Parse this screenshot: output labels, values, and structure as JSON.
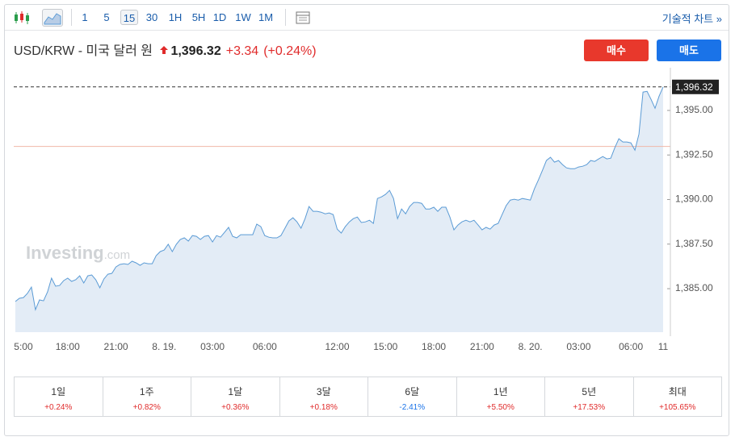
{
  "toolbar": {
    "intervals": [
      "1",
      "5",
      "15",
      "30",
      "1H",
      "5H",
      "1D",
      "1W",
      "1M"
    ],
    "active_interval": 2,
    "technical_chart": "기술적 차트 »"
  },
  "header": {
    "title": "USD/KRW - 미국 달러 원",
    "price": "1,396.32",
    "change": "+3.34",
    "change_pct": "(+0.24%)",
    "buy": "매수",
    "sell": "매도"
  },
  "chart_data": {
    "type": "line",
    "watermark": "Investing",
    "watermark_suffix": ".com",
    "color": "#5b9bd5",
    "fill": "#e3ecf6",
    "categories": [
      null,
      null,
      "5:00",
      null,
      null,
      null,
      null,
      null,
      null,
      null,
      null,
      null,
      null,
      "18:00",
      null,
      null,
      null,
      null,
      null,
      null,
      null,
      null,
      null,
      null,
      null,
      "21:00",
      null,
      null,
      null,
      null,
      null,
      null,
      null,
      null,
      null,
      null,
      null,
      "8. 19.",
      null,
      null,
      null,
      null,
      null,
      null,
      null,
      null,
      null,
      null,
      null,
      "03:00",
      null,
      null,
      null,
      null,
      null,
      null,
      null,
      null,
      null,
      null,
      null,
      null,
      "06:00",
      null,
      null,
      null,
      null,
      null,
      null,
      null,
      null,
      null,
      null,
      null,
      null,
      null,
      null,
      null,
      null,
      null,
      "12:00",
      null,
      null,
      null,
      null,
      null,
      null,
      null,
      null,
      null,
      null,
      null,
      "15:00",
      null,
      null,
      null,
      null,
      null,
      null,
      null,
      null,
      null,
      null,
      null,
      "18:00",
      null,
      null,
      null,
      null,
      null,
      null,
      null,
      null,
      null,
      null,
      null,
      "21:00",
      null,
      null,
      null,
      null,
      null,
      null,
      null,
      null,
      null,
      null,
      null,
      "8. 20.",
      null,
      null,
      null,
      null,
      null,
      null,
      null,
      null,
      null,
      null,
      null,
      "03:00",
      null,
      null,
      null,
      null,
      null,
      null,
      null,
      null,
      null,
      null,
      null,
      null,
      "06:00",
      null,
      null,
      null,
      null,
      null,
      null,
      null,
      "11"
    ],
    "values": [
      1384.28,
      1384.46,
      1384.5,
      1384.73,
      1385.09,
      1383.82,
      1384.37,
      1384.32,
      1384.82,
      1385.59,
      1385.14,
      1385.18,
      1385.45,
      1385.59,
      1385.41,
      1385.5,
      1385.72,
      1385.32,
      1385.72,
      1385.77,
      1385.5,
      1385.05,
      1385.54,
      1385.81,
      1385.86,
      1386.22,
      1386.36,
      1386.4,
      1386.36,
      1386.54,
      1386.45,
      1386.31,
      1386.45,
      1386.4,
      1386.4,
      1386.85,
      1387.08,
      1387.17,
      1387.49,
      1387.08,
      1387.49,
      1387.76,
      1387.85,
      1387.67,
      1387.98,
      1387.94,
      1387.76,
      1387.94,
      1387.98,
      1387.62,
      1387.98,
      1387.89,
      1388.16,
      1388.44,
      1387.94,
      1387.85,
      1388.03,
      1388.03,
      1388.03,
      1388.03,
      1388.62,
      1388.48,
      1387.98,
      1387.89,
      1387.85,
      1387.85,
      1387.98,
      1388.39,
      1388.8,
      1388.98,
      1388.75,
      1388.39,
      1388.93,
      1389.61,
      1389.34,
      1389.34,
      1389.29,
      1389.2,
      1389.25,
      1389.16,
      1388.34,
      1388.12,
      1388.48,
      1388.75,
      1388.93,
      1389.02,
      1388.71,
      1388.75,
      1388.84,
      1388.66,
      1390.06,
      1390.15,
      1390.29,
      1390.51,
      1390.06,
      1388.93,
      1389.47,
      1389.2,
      1389.61,
      1389.84,
      1389.84,
      1389.79,
      1389.47,
      1389.47,
      1389.57,
      1389.34,
      1389.57,
      1389.57,
      1389.02,
      1388.3,
      1388.57,
      1388.75,
      1388.84,
      1388.75,
      1388.84,
      1388.57,
      1388.3,
      1388.44,
      1388.34,
      1388.57,
      1388.66,
      1389.16,
      1389.66,
      1389.97,
      1390.02,
      1389.97,
      1390.06,
      1390.02,
      1389.97,
      1390.6,
      1391.1,
      1391.64,
      1392.19,
      1392.37,
      1392.1,
      1392.19,
      1391.96,
      1391.78,
      1391.73,
      1391.73,
      1391.83,
      1391.87,
      1391.96,
      1392.19,
      1392.14,
      1392.28,
      1392.41,
      1392.28,
      1392.32,
      1392.91,
      1393.41,
      1393.23,
      1393.23,
      1393.18,
      1392.77,
      1393.68,
      1396.03,
      1396.07,
      1395.62,
      1395.12,
      1395.8,
      1396.32
    ],
    "ylim": [
      1382.56,
      1397.17
    ],
    "yticks": [
      {
        "value": 1385,
        "label": "1,385.00"
      },
      {
        "value": 1387.5,
        "label": "1,387.50"
      },
      {
        "value": 1390,
        "label": "1,390.00"
      },
      {
        "value": 1392.5,
        "label": "1,392.50"
      },
      {
        "value": 1395,
        "label": "1,395.00"
      }
    ],
    "last_price": {
      "value": 1396.32,
      "label": "1,396.32"
    },
    "prev_close": 1392.98,
    "prev_close_color": "#f0b8a8"
  },
  "performance": [
    {
      "period": "1일",
      "change": "+0.24%"
    },
    {
      "period": "1주",
      "change": "+0.82%"
    },
    {
      "period": "1달",
      "change": "+0.36%"
    },
    {
      "period": "3달",
      "change": "+0.18%"
    },
    {
      "period": "6달",
      "change": "-2.41%"
    },
    {
      "period": "1년",
      "change": "+5.50%"
    },
    {
      "period": "5년",
      "change": "+17.53%"
    },
    {
      "period": "최대",
      "change": "+105.65%"
    }
  ]
}
